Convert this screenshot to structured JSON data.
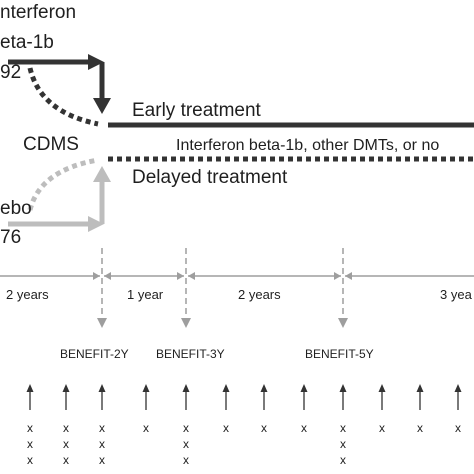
{
  "top_arm": {
    "line1": "nterferon",
    "line2": "eta-1b",
    "line3": "92",
    "color": "#333333"
  },
  "bottom_arm": {
    "line1": "ebo",
    "line2": "76",
    "color": "#bdbdbd"
  },
  "event_label": "CDMS",
  "early_label": "Early treatment",
  "therapy_label": "Interferon beta-1b, other DMTs, or no",
  "delayed_label": "Delayed treatment",
  "periods": [
    "2 years",
    "1 year",
    "2 years",
    "3 yea"
  ],
  "study_labels": [
    "BENEFIT-2Y",
    "BENEFIT-3Y",
    "BENEFIT-5Y"
  ],
  "marker_symbol": "x",
  "colors": {
    "dark": "#333333",
    "light": "#bdbdbd",
    "timeline": "#9e9e9e"
  }
}
